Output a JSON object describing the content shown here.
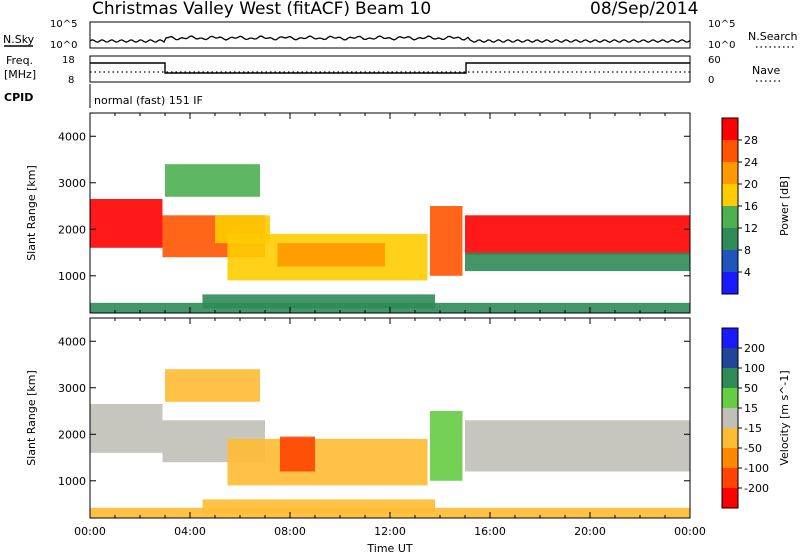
{
  "header": {
    "station": "Christmas Valley West (fitACF)",
    "beam": "Beam 10",
    "date": "08/Sep/2014"
  },
  "strip_nsky": {
    "label": "N.Sky",
    "right_label": "N.Search",
    "left_ticks": [
      "10^5",
      "10^0"
    ],
    "right_ticks": [
      "10^5",
      "10^0"
    ]
  },
  "strip_freq": {
    "label_line1": "Freq.",
    "label_line2": "[MHz]",
    "right_label": "Nave",
    "left_ticks": [
      "18",
      "8"
    ],
    "right_ticks": [
      "60",
      "0"
    ]
  },
  "cpid": {
    "label": "CPID",
    "value": "normal (fast) 151 IF"
  },
  "colors": {
    "power_scale": [
      "#1a1aff",
      "#2255bb",
      "#2e8b57",
      "#4caf50",
      "#ffcc00",
      "#ff9900",
      "#ff5500",
      "#ff0000"
    ],
    "velocity_scale": [
      "#ff0000",
      "#ff4400",
      "#ff8800",
      "#ffbb33",
      "#c0c0b8",
      "#66cc44",
      "#2e8b57",
      "#224499",
      "#1a1aff"
    ]
  },
  "chart_data": [
    {
      "type": "heatmap",
      "name": "power",
      "xlabel": "Time UT",
      "ylabel": "Slant Range [km]",
      "xlim": [
        0,
        24
      ],
      "ylim": [
        200,
        4500
      ],
      "y_ticks": [
        "1000",
        "2000",
        "3000",
        "4000"
      ],
      "colorbar_label": "Power [dB]",
      "colorbar_ticks": [
        "28",
        "24",
        "20",
        "16",
        "12",
        "8",
        "4"
      ],
      "colorbar_range": [
        0,
        30
      ],
      "bands": [
        {
          "t0": 0.0,
          "t1": 2.9,
          "r0": 1600,
          "r1": 2650,
          "level": 28
        },
        {
          "t0": 2.9,
          "t1": 7.0,
          "r0": 1400,
          "r1": 2300,
          "level": 26
        },
        {
          "t0": 3.0,
          "t1": 6.8,
          "r0": 2700,
          "r1": 3400,
          "level": 14
        },
        {
          "t0": 5.0,
          "t1": 7.2,
          "r0": 1700,
          "r1": 2300,
          "level": 18
        },
        {
          "t0": 5.5,
          "t1": 13.5,
          "r0": 900,
          "r1": 1900,
          "level": 16
        },
        {
          "t0": 7.5,
          "t1": 11.8,
          "r0": 1200,
          "r1": 1700,
          "level": 22
        },
        {
          "t0": 4.5,
          "t1": 13.8,
          "r0": 300,
          "r1": 600,
          "level": 10
        },
        {
          "t0": 13.6,
          "t1": 14.9,
          "r0": 1000,
          "r1": 2500,
          "level": 24
        },
        {
          "t0": 15.0,
          "t1": 24.0,
          "r0": 1450,
          "r1": 2300,
          "level": 27
        },
        {
          "t0": 15.0,
          "t1": 24.0,
          "r0": 1100,
          "r1": 1500,
          "level": 10
        },
        {
          "t0": 0.0,
          "t1": 24.0,
          "r0": 200,
          "r1": 420,
          "level": 8
        }
      ]
    },
    {
      "type": "heatmap",
      "name": "velocity",
      "xlabel": "Time UT",
      "ylabel": "Slant Range [km]",
      "xlim": [
        0,
        24
      ],
      "ylim": [
        200,
        4500
      ],
      "x_ticks": [
        "00:00",
        "04:00",
        "08:00",
        "12:00",
        "16:00",
        "20:00",
        "00:00"
      ],
      "y_ticks": [
        "1000",
        "2000",
        "3000",
        "4000"
      ],
      "colorbar_label": "Velocity [m s^-1]",
      "colorbar_ticks": [
        "200",
        "100",
        "50",
        "15",
        "-15",
        "-50",
        "-100",
        "-200"
      ],
      "colorbar_range": [
        -250,
        250
      ],
      "bands": [
        {
          "t0": 0.0,
          "t1": 2.9,
          "r0": 1600,
          "r1": 2650,
          "level": 0
        },
        {
          "t0": 2.9,
          "t1": 7.0,
          "r0": 1400,
          "r1": 2300,
          "level": 0
        },
        {
          "t0": 3.0,
          "t1": 6.8,
          "r0": 2700,
          "r1": 3400,
          "level": -40
        },
        {
          "t0": 5.5,
          "t1": 13.5,
          "r0": 900,
          "r1": 1900,
          "level": -60
        },
        {
          "t0": 7.6,
          "t1": 9.0,
          "r0": 1200,
          "r1": 1950,
          "level": -150
        },
        {
          "t0": 4.5,
          "t1": 13.8,
          "r0": 300,
          "r1": 600,
          "level": -40
        },
        {
          "t0": 13.6,
          "t1": 14.9,
          "r0": 1000,
          "r1": 2500,
          "level": 40
        },
        {
          "t0": 15.0,
          "t1": 24.0,
          "r0": 1200,
          "r1": 2300,
          "level": 0
        },
        {
          "t0": 0.0,
          "t1": 24.0,
          "r0": 200,
          "r1": 420,
          "level": -30
        }
      ]
    }
  ]
}
